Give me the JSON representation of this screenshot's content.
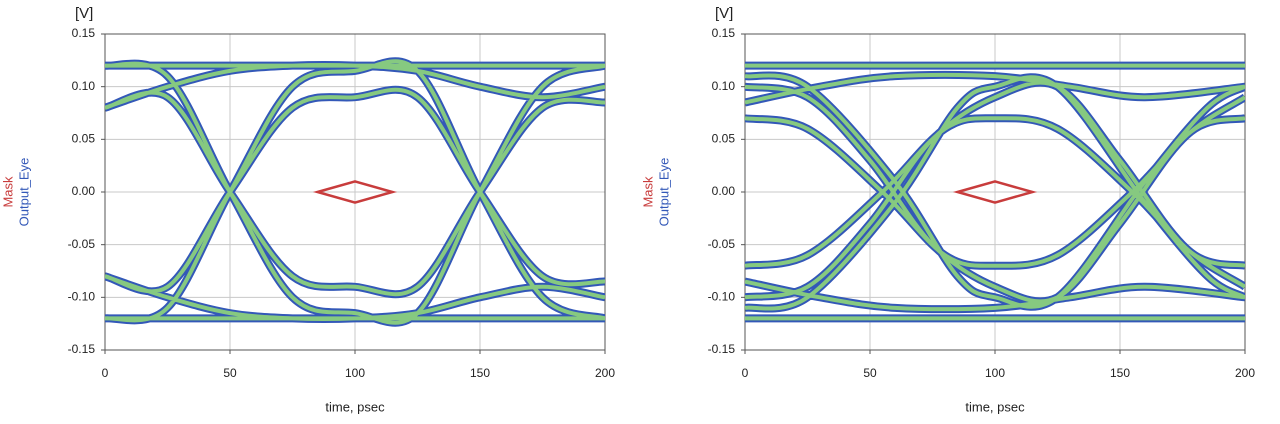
{
  "chart_data": [
    {
      "type": "line",
      "y_unit": "[V]",
      "xlabel": "time, psec",
      "xlim": [
        0,
        200
      ],
      "xticks": [
        0,
        50,
        100,
        150,
        200
      ],
      "ylim": [
        -0.15,
        0.15
      ],
      "yticks": [
        -0.15,
        {
          "value": -0.1,
          "label": "-0.10"
        },
        -0.05,
        {
          "value": 0,
          "label": "0.00"
        },
        0.05,
        {
          "value": 0.1,
          "label": "0.10"
        },
        0.15
      ],
      "grid": true,
      "series": [
        {
          "name": "Mask",
          "color": "#c83c3c",
          "x": [
            85,
            100,
            115,
            100,
            85
          ],
          "values": [
            0,
            0.01,
            0,
            -0.01,
            0
          ]
        },
        {
          "name": "Output_Eye",
          "color": "#3358b8",
          "inner_color": "#8fd67a",
          "x": [
            0,
            25,
            50,
            75,
            100,
            125,
            150,
            175,
            200,
            null,
            0,
            25,
            50,
            75,
            100,
            125,
            150,
            175,
            200,
            null,
            0,
            25,
            50,
            75,
            100,
            125,
            150,
            175,
            200,
            null,
            0,
            25,
            50,
            75,
            100,
            125,
            150,
            175,
            200,
            null,
            0,
            25,
            50,
            75,
            100,
            125,
            150,
            175,
            200,
            null,
            0,
            25,
            50,
            75,
            100,
            125,
            150,
            175,
            200,
            null,
            0,
            25,
            50,
            75,
            100,
            125,
            150,
            175,
            200,
            null,
            0,
            25,
            50,
            75,
            100,
            125,
            150,
            175,
            200
          ],
          "values": [
            0.08,
            0.09,
            0,
            -0.08,
            -0.09,
            -0.09,
            0,
            0.08,
            0.085,
            null,
            -0.08,
            -0.09,
            0,
            0.08,
            0.09,
            0.09,
            0,
            -0.08,
            -0.085,
            null,
            0.12,
            0.11,
            0,
            -0.1,
            -0.115,
            -0.115,
            0,
            0.1,
            0.12,
            null,
            -0.12,
            -0.11,
            0,
            0.1,
            0.115,
            0.115,
            0,
            -0.1,
            -0.12,
            null,
            0.12,
            0.12,
            0.12,
            0.12,
            0.12,
            0.12,
            0.12,
            0.12,
            0.12,
            null,
            -0.12,
            -0.12,
            -0.12,
            -0.12,
            -0.12,
            -0.12,
            -0.12,
            -0.12,
            -0.12,
            null,
            0.08,
            0.1,
            0.115,
            0.12,
            0.12,
            0.115,
            0.1,
            0.09,
            0.1,
            null,
            -0.08,
            -0.1,
            -0.115,
            -0.12,
            -0.12,
            -0.115,
            -0.1,
            -0.09,
            -0.1
          ]
        }
      ]
    },
    {
      "type": "line",
      "y_unit": "[V]",
      "xlabel": "time, psec",
      "xlim": [
        0,
        200
      ],
      "xticks": [
        0,
        50,
        100,
        150,
        200
      ],
      "ylim": [
        -0.15,
        0.15
      ],
      "yticks": [
        -0.15,
        {
          "value": -0.1,
          "label": "-0.10"
        },
        -0.05,
        {
          "value": 0,
          "label": "0.00"
        },
        0.05,
        {
          "value": 0.1,
          "label": "0.10"
        },
        0.15
      ],
      "grid": true,
      "series": [
        {
          "name": "Mask",
          "color": "#c83c3c",
          "x": [
            85,
            100,
            115,
            100,
            85
          ],
          "values": [
            0,
            0.01,
            0,
            -0.01,
            0
          ]
        },
        {
          "name": "Output_Eye",
          "color": "#3358b8",
          "inner_color": "#8fd67a",
          "x": [
            0,
            25,
            50,
            75,
            100,
            125,
            150,
            175,
            200,
            null,
            0,
            25,
            50,
            75,
            100,
            125,
            150,
            175,
            200,
            null,
            0,
            25,
            55,
            80,
            100,
            125,
            155,
            180,
            200,
            null,
            0,
            25,
            55,
            80,
            100,
            125,
            155,
            180,
            200,
            null,
            0,
            25,
            50,
            75,
            100,
            125,
            150,
            175,
            200,
            null,
            0,
            25,
            50,
            75,
            100,
            125,
            150,
            175,
            200,
            null,
            0,
            25,
            60,
            85,
            100,
            125,
            160,
            185,
            200,
            null,
            0,
            25,
            60,
            85,
            100,
            125,
            160,
            185,
            200,
            null,
            0,
            30,
            60,
            100,
            130,
            160,
            200,
            null,
            0,
            30,
            60,
            100,
            130,
            160,
            200
          ],
          "values": [
            0.12,
            0.12,
            0.12,
            0.12,
            0.12,
            0.12,
            0.12,
            0.12,
            0.12,
            null,
            -0.12,
            -0.12,
            -0.12,
            -0.12,
            -0.12,
            -0.12,
            -0.12,
            -0.12,
            -0.12,
            null,
            0.07,
            0.06,
            0,
            -0.06,
            -0.07,
            -0.06,
            0,
            0.06,
            0.07,
            null,
            -0.07,
            -0.06,
            0,
            0.06,
            0.07,
            0.06,
            0,
            -0.06,
            -0.07,
            null,
            0.1,
            0.09,
            0.03,
            -0.05,
            -0.09,
            -0.1,
            -0.03,
            0.05,
            0.09,
            null,
            -0.1,
            -0.09,
            -0.03,
            0.05,
            0.09,
            0.1,
            0.03,
            -0.05,
            -0.09,
            null,
            0.11,
            0.1,
            0.01,
            -0.08,
            -0.1,
            -0.1,
            0.01,
            0.08,
            0.1,
            null,
            -0.11,
            -0.1,
            -0.01,
            0.08,
            0.1,
            0.1,
            -0.01,
            -0.08,
            -0.1,
            null,
            0.085,
            0.1,
            0.11,
            0.11,
            0.1,
            0.09,
            0.1,
            null,
            -0.085,
            -0.1,
            -0.11,
            -0.11,
            -0.1,
            -0.09,
            -0.1
          ]
        }
      ]
    }
  ]
}
